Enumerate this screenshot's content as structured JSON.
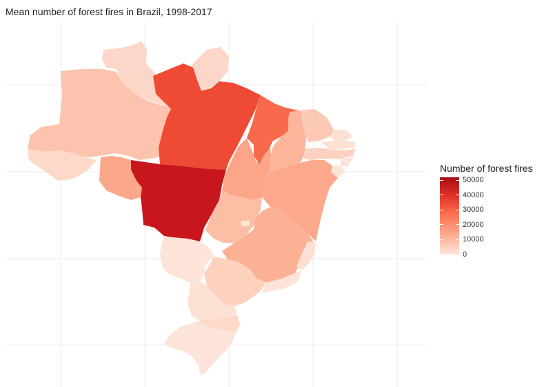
{
  "title": "Mean number of forest fires in Brazil, 1998-2017",
  "legend": {
    "title": "Number of forest fires",
    "ticks": [
      {
        "label": "50000",
        "value": 50000
      },
      {
        "label": "40000",
        "value": 40000
      },
      {
        "label": "30000",
        "value": 30000
      },
      {
        "label": "20000",
        "value": 20000
      },
      {
        "label": "10000",
        "value": 10000
      },
      {
        "label": "0",
        "value": 0
      }
    ],
    "min": 0,
    "max": 52000
  },
  "colors": {
    "scale_low": "#fee5d9",
    "scale_mid": "#fb6a4a",
    "scale_high": "#a50f15",
    "grid": "#ebebeb"
  },
  "states": [
    {
      "id": "RR",
      "fill": "#fcd7c9"
    },
    {
      "id": "AP",
      "fill": "#fcd7c9"
    },
    {
      "id": "AM",
      "fill": "#fcc4ae"
    },
    {
      "id": "AC",
      "fill": "#fdd9ca"
    },
    {
      "id": "PA",
      "fill": "#ee4a34"
    },
    {
      "id": "RO",
      "fill": "#fba88a"
    },
    {
      "id": "MT",
      "fill": "#c8171c"
    },
    {
      "id": "TO",
      "fill": "#fca588"
    },
    {
      "id": "MA",
      "fill": "#f7694a"
    },
    {
      "id": "PI",
      "fill": "#fcb59a"
    },
    {
      "id": "CE",
      "fill": "#fcc9b4"
    },
    {
      "id": "RN",
      "fill": "#fde0d4"
    },
    {
      "id": "PB",
      "fill": "#fde0d4"
    },
    {
      "id": "PE",
      "fill": "#fdd2c0"
    },
    {
      "id": "AL",
      "fill": "#fde3d8"
    },
    {
      "id": "SE",
      "fill": "#fde3d8"
    },
    {
      "id": "BA",
      "fill": "#fca88b"
    },
    {
      "id": "GO",
      "fill": "#fcbfa6"
    },
    {
      "id": "DF",
      "fill": "#fde3d8"
    },
    {
      "id": "MG",
      "fill": "#fcb194"
    },
    {
      "id": "ES",
      "fill": "#fde0d4"
    },
    {
      "id": "MS",
      "fill": "#fde3d8"
    },
    {
      "id": "SP",
      "fill": "#fdd1be"
    },
    {
      "id": "RJ",
      "fill": "#fde3d8"
    },
    {
      "id": "PR",
      "fill": "#fde1d5"
    },
    {
      "id": "SC",
      "fill": "#fdd9ca"
    },
    {
      "id": "RS",
      "fill": "#fde3d8"
    }
  ]
}
